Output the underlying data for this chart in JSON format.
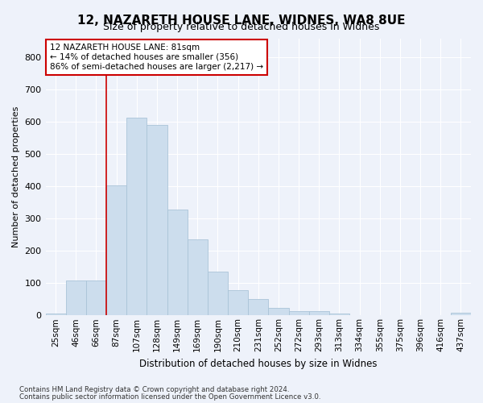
{
  "title": "12, NAZARETH HOUSE LANE, WIDNES, WA8 8UE",
  "subtitle": "Size of property relative to detached houses in Widnes",
  "xlabel": "Distribution of detached houses by size in Widnes",
  "ylabel": "Number of detached properties",
  "categories": [
    "25sqm",
    "46sqm",
    "66sqm",
    "87sqm",
    "107sqm",
    "128sqm",
    "149sqm",
    "169sqm",
    "190sqm",
    "210sqm",
    "231sqm",
    "252sqm",
    "272sqm",
    "293sqm",
    "313sqm",
    "334sqm",
    "355sqm",
    "375sqm",
    "396sqm",
    "416sqm",
    "437sqm"
  ],
  "bar_heights": [
    5,
    107,
    107,
    403,
    613,
    590,
    328,
    235,
    135,
    78,
    50,
    22,
    13,
    13,
    5,
    0,
    0,
    0,
    0,
    0,
    8
  ],
  "bar_color": "#ccdded",
  "bar_edge_color": "#aac4d8",
  "background_color": "#eef2fa",
  "grid_color": "#d8e4f0",
  "vline_color": "#cc0000",
  "vline_x_idx": 3,
  "annotation_line1": "12 NAZARETH HOUSE LANE: 81sqm",
  "annotation_line2": "← 14% of detached houses are smaller (356)",
  "annotation_line3": "86% of semi-detached houses are larger (2,217) →",
  "annotation_box_facecolor": "#ffffff",
  "annotation_box_edgecolor": "#cc0000",
  "footnote1": "Contains HM Land Registry data © Crown copyright and database right 2024.",
  "footnote2": "Contains public sector information licensed under the Open Government Licence v3.0.",
  "ylim": [
    0,
    860
  ],
  "yticks": [
    0,
    100,
    200,
    300,
    400,
    500,
    600,
    700,
    800
  ],
  "title_fontsize": 11,
  "subtitle_fontsize": 9
}
